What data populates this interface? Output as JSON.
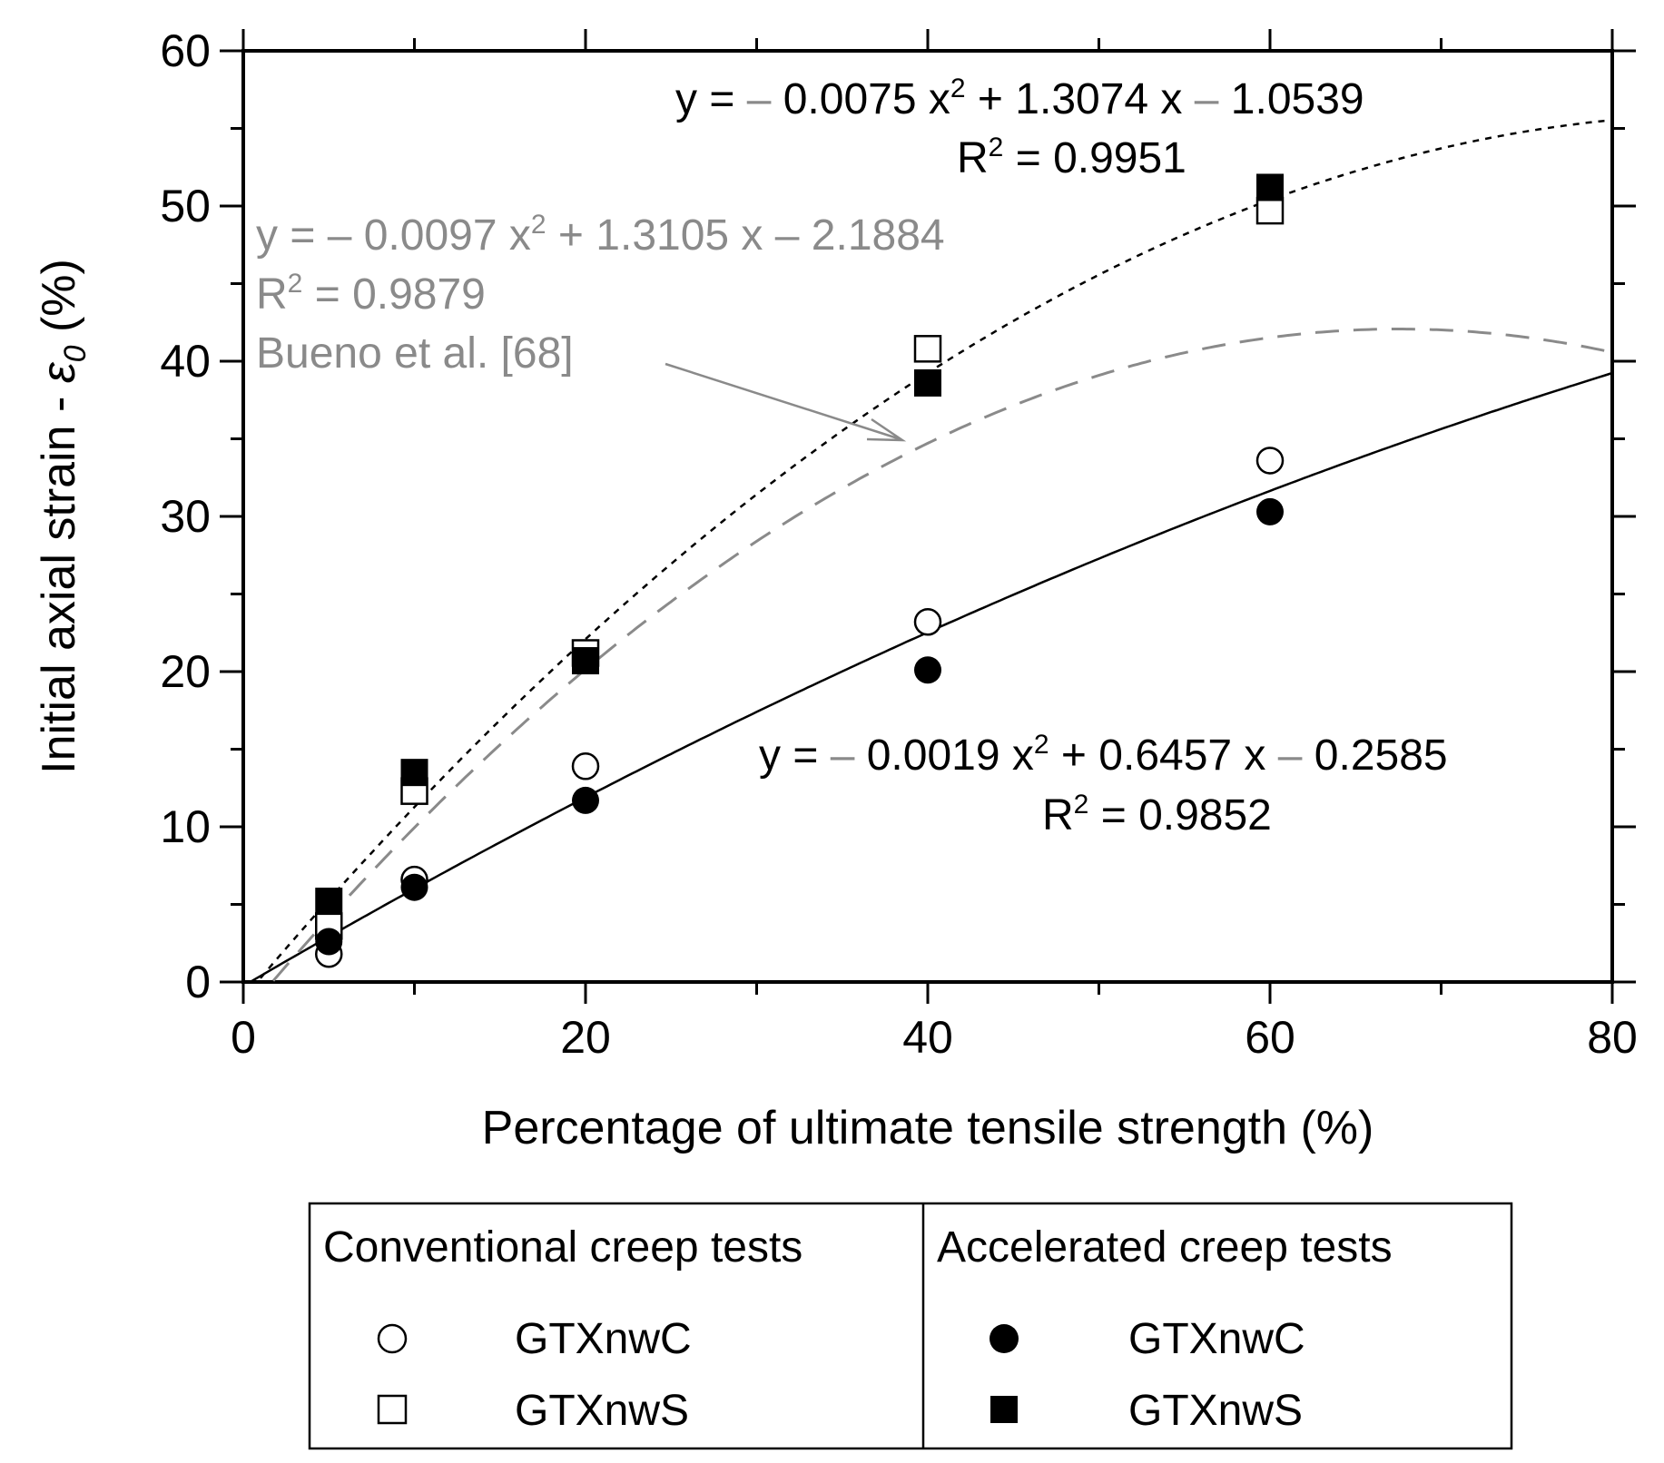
{
  "chart_data": {
    "type": "scatter",
    "xlabel": "Percentage of ultimate tensile strength (%)",
    "ylabel_main": "Initial axial strain - ",
    "ylabel_symbol": "ε",
    "ylabel_sub": "0",
    "ylabel_unit": " (%)",
    "xlim": [
      0,
      80
    ],
    "ylim": [
      0,
      60
    ],
    "xticks": [
      0,
      20,
      40,
      60,
      80
    ],
    "yticks": [
      0,
      10,
      20,
      30,
      40,
      50,
      60
    ],
    "xtick_labels": [
      "0",
      "20",
      "40",
      "60",
      "80"
    ],
    "ytick_labels": [
      "0",
      "10",
      "20",
      "30",
      "40",
      "50",
      "60"
    ],
    "series": [
      {
        "name": "GTXnwC",
        "group": "Conventional creep tests",
        "marker": "open-circle",
        "x": [
          5,
          10,
          20,
          40,
          60
        ],
        "y": [
          1.8,
          6.6,
          13.9,
          23.2,
          33.6
        ]
      },
      {
        "name": "GTXnwS",
        "group": "Conventional creep tests",
        "marker": "open-square",
        "x": [
          5,
          10,
          20,
          40,
          60
        ],
        "y": [
          3.6,
          12.3,
          21.2,
          40.8,
          49.7
        ]
      },
      {
        "name": "GTXnwC",
        "group": "Accelerated creep tests",
        "marker": "filled-circle",
        "x": [
          5,
          10,
          20,
          40,
          60
        ],
        "y": [
          2.6,
          6.1,
          11.7,
          20.1,
          30.3
        ]
      },
      {
        "name": "GTXnwS",
        "group": "Accelerated creep tests",
        "marker": "filled-square",
        "x": [
          5,
          10,
          20,
          40,
          60
        ],
        "y": [
          5.2,
          13.5,
          20.7,
          38.6,
          51.2
        ]
      }
    ],
    "fits": [
      {
        "name": "square-fit",
        "style": "dotted",
        "color": "#000000",
        "a": -0.0075,
        "b": 1.3074,
        "c": -1.0539,
        "x_range": [
          0,
          80
        ]
      },
      {
        "name": "circle-fit",
        "style": "solid",
        "color": "#000000",
        "a": -0.0019,
        "b": 0.6457,
        "c": -0.2585,
        "x_range": [
          0,
          80
        ]
      },
      {
        "name": "bueno-fit",
        "style": "dashed",
        "color": "#8a8a8a",
        "a": -0.0097,
        "b": 1.3105,
        "c": -2.1884,
        "x_range": [
          0,
          80
        ]
      }
    ],
    "annotations": {
      "eq_square": {
        "y_eq": "y = ",
        "minus1": "– ",
        "a": "0.0075 x",
        "sup": "2",
        "b": " + 1.3074 x ",
        "minus2": "–",
        "c": " 1.0539",
        "r2_pre": "R",
        "r2_sup": "2",
        "r2_post": " = 0.9951"
      },
      "eq_circle": {
        "y_eq": "y = ",
        "minus1": "– ",
        "a": "0.0019 x",
        "sup": "2",
        "b": " + 0.6457 x ",
        "minus2": "–",
        "c": " 0.2585",
        "r2_pre": "R",
        "r2_sup": "2",
        "r2_post": " = 0.9852"
      },
      "eq_bueno": {
        "text_a": "y =  – 0.0097 x",
        "sup": "2",
        "text_b": " + 1.3105 x – 2.1884",
        "r2_pre": "R",
        "r2_sup": "2",
        "r2_post": " = 0.9879",
        "label": "Bueno et al. [68]"
      }
    },
    "legend": {
      "placement": "bottom",
      "header_left": "Conventional creep tests",
      "header_right": "Accelerated creep tests",
      "left_row1": "GTXnwC",
      "left_row2": "GTXnwS",
      "right_row1": "GTXnwC",
      "right_row2": "GTXnwS"
    }
  }
}
